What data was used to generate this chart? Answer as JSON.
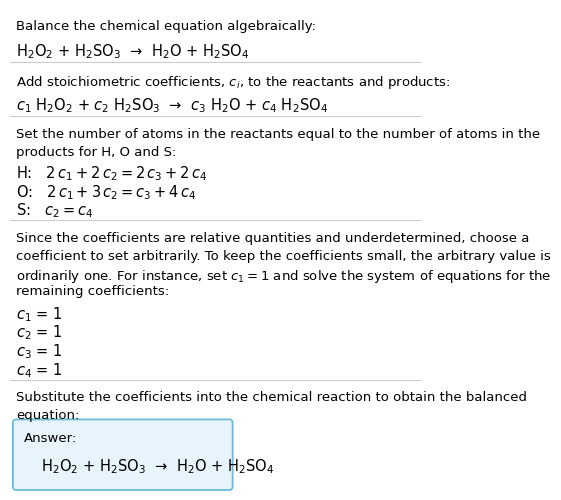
{
  "title_line1": "Balance the chemical equation algebraically:",
  "title_line2_math": "H$_2$O$_2$ + H$_2$SO$_3$  →  H$_2$O + H$_2$SO$_4$",
  "section2_header": "Add stoichiometric coefficients, $c_i$, to the reactants and products:",
  "section2_math": "$c_1$ H$_2$O$_2$ + $c_2$ H$_2$SO$_3$  →  $c_3$ H$_2$O + $c_4$ H$_2$SO$_4$",
  "section3_line1": "Set the number of atoms in the reactants equal to the number of atoms in the",
  "section3_line2": "products for H, O and S:",
  "section3_H": "H:   $2\\,c_1 + 2\\,c_2 = 2\\,c_3 + 2\\,c_4$",
  "section3_O": "O:   $2\\,c_1 + 3\\,c_2 = c_3 + 4\\,c_4$",
  "section3_S": "S:   $c_2 = c_4$",
  "section4_line1": "Since the coefficients are relative quantities and underdetermined, choose a",
  "section4_line2": "coefficient to set arbitrarily. To keep the coefficients small, the arbitrary value is",
  "section4_line3": "ordinarily one. For instance, set $c_1 = 1$ and solve the system of equations for the",
  "section4_line4": "remaining coefficients:",
  "section4_c1": "$c_1$ = 1",
  "section4_c2": "$c_2$ = 1",
  "section4_c3": "$c_3$ = 1",
  "section4_c4": "$c_4$ = 1",
  "section5_line1": "Substitute the coefficients into the chemical reaction to obtain the balanced",
  "section5_line2": "equation:",
  "answer_label": "Answer:",
  "answer_math": "H$_2$O$_2$ + H$_2$SO$_3$  →  H$_2$O + H$_2$SO$_4$",
  "bg_color": "#ffffff",
  "text_color": "#000000",
  "line_color": "#cccccc",
  "answer_box_facecolor": "#e8f4fb",
  "answer_box_edgecolor": "#6bbbd8",
  "font_size_body": 9.5,
  "font_size_math": 10.5
}
